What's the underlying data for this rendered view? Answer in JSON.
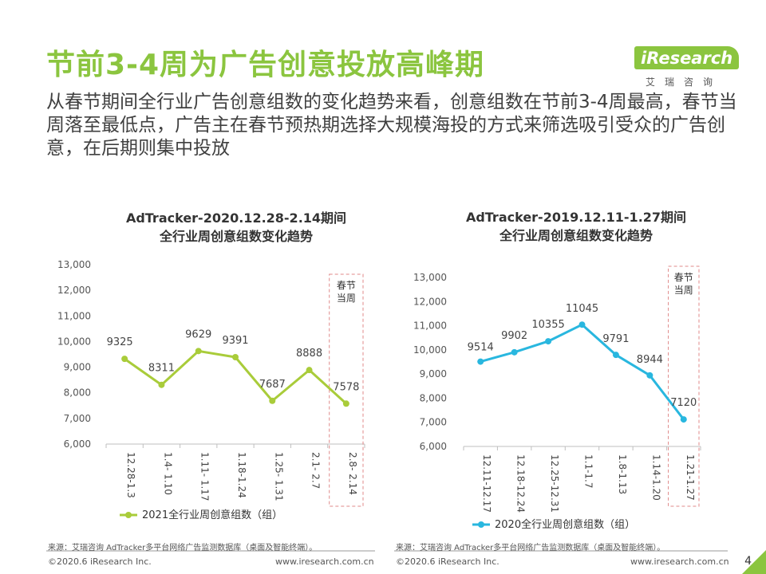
{
  "header": {
    "title": "节前3-4周为广告创意投放高峰期",
    "subtitle": "从春节期间全行业广告创意组数的变化趋势来看，创意组数在节前3-4周最高，春节当周落至最低点，广告主在春节预热期选择大规模海投的方式来筛选吸引受众的广告创意，在后期则集中投放"
  },
  "logo": {
    "name": "iResearch",
    "sub": "艾瑞咨询"
  },
  "colors": {
    "accent": "#8bc53f",
    "left_line": "#a9cc3a",
    "right_line": "#29b7df",
    "highlight_border": "#e08a8a"
  },
  "chart_data": [
    {
      "type": "line",
      "title_line1": "AdTracker-2020.12.28-2.14期间",
      "title_line2": "全行业周创意组数变化趋势",
      "categories": [
        "12.28-1.3",
        "1.4- 1.10",
        "1.11- 1.17",
        "1.18-1.24",
        "1.25- 1.31",
        "2.1- 2.7",
        "2.8- 2.14"
      ],
      "series": [
        {
          "name": "2021全行业周创意组数（组）",
          "values": [
            9325,
            8311,
            9629,
            9391,
            7687,
            8888,
            7578
          ]
        }
      ],
      "ylim": [
        6000,
        13000
      ],
      "yticks": [
        "6,000",
        "7,000",
        "8,000",
        "9,000",
        "10,000",
        "11,000",
        "12,000",
        "13,000"
      ],
      "highlight_label": [
        "春节",
        "当周"
      ],
      "highlight_index": 6
    },
    {
      "type": "line",
      "title_line1": "AdTracker-2019.12.11-1.27期间",
      "title_line2": "全行业周创意组数变化趋势",
      "categories": [
        "12.11-12.17",
        "12.18-12.24",
        "12.25-12.31",
        "1.1-1.7",
        "1.8-1.13",
        "1.14-1.20",
        "1.21-1.27"
      ],
      "series": [
        {
          "name": "2020全行业周创意组数（组）",
          "values": [
            9514,
            9902,
            10355,
            11045,
            9791,
            8944,
            7120
          ]
        }
      ],
      "ylim": [
        6000,
        13000
      ],
      "yticks": [
        "6,000",
        "7,000",
        "8,000",
        "9,000",
        "10,000",
        "11,000",
        "12,000",
        "13,000"
      ],
      "highlight_label": [
        "春节",
        "当周"
      ],
      "highlight_index": 6
    }
  ],
  "sources": {
    "left": "来源：艾瑞咨询 AdTracker多平台网络广告监测数据库（桌面及智能终端）。",
    "right": "来源：艾瑞咨询 AdTracker多平台网络广告监测数据库（桌面及智能终端）。"
  },
  "footer": {
    "copyright_left": "©2020.6 iResearch Inc.",
    "url_left": "www.iresearch.com.cn",
    "copyright_right": "©2020.6 iResearch Inc.",
    "url_right": "www.iresearch.com.cn",
    "page_number": "4"
  }
}
